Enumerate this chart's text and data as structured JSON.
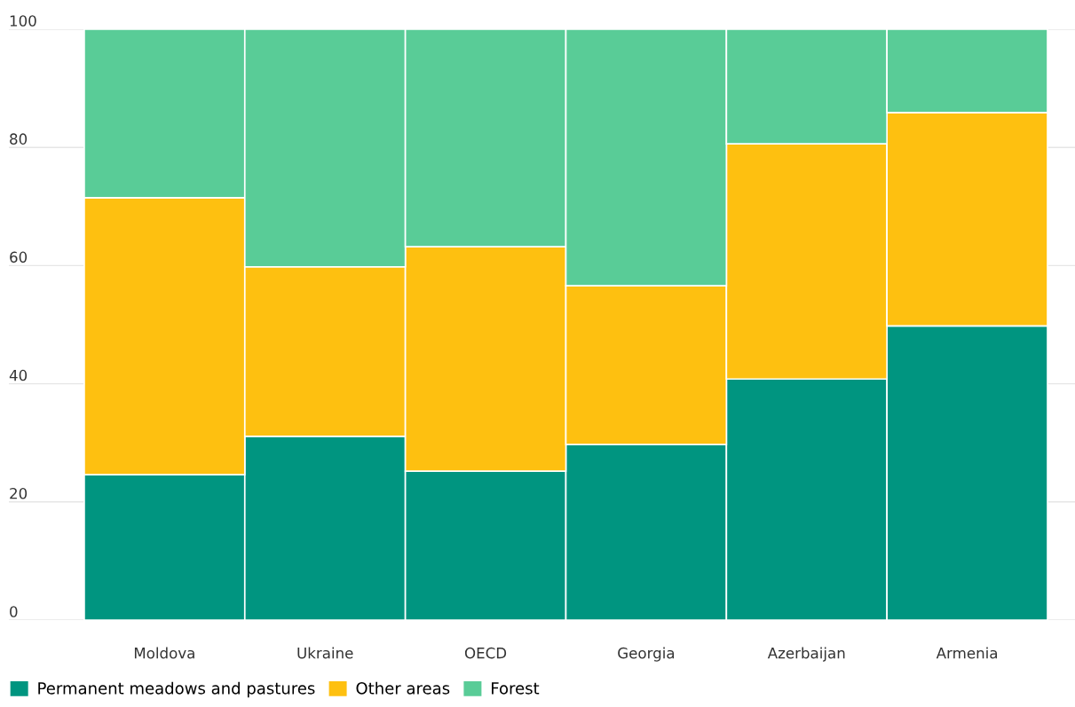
{
  "chart_data": {
    "type": "bar",
    "stacked": true,
    "categories": [
      "Moldova",
      "Ukraine",
      "OECD",
      "Georgia",
      "Azerbaijan",
      "Armenia"
    ],
    "series": [
      {
        "name": "Permanent meadows and pastures",
        "color": "#009580",
        "values": [
          24.6,
          31.1,
          25.2,
          29.7,
          40.8,
          49.8
        ]
      },
      {
        "name": "Other areas",
        "color": "#fec010",
        "values": [
          46.9,
          28.7,
          38.0,
          26.9,
          39.8,
          36.1
        ]
      },
      {
        "name": "Forest",
        "color": "#59cc97",
        "values": [
          28.5,
          40.2,
          36.8,
          43.4,
          19.4,
          14.1
        ]
      }
    ],
    "ylim": [
      0,
      100
    ],
    "yticks": [
      0,
      20,
      40,
      60,
      80,
      100
    ],
    "grid": "y",
    "legend": "bottom left"
  }
}
